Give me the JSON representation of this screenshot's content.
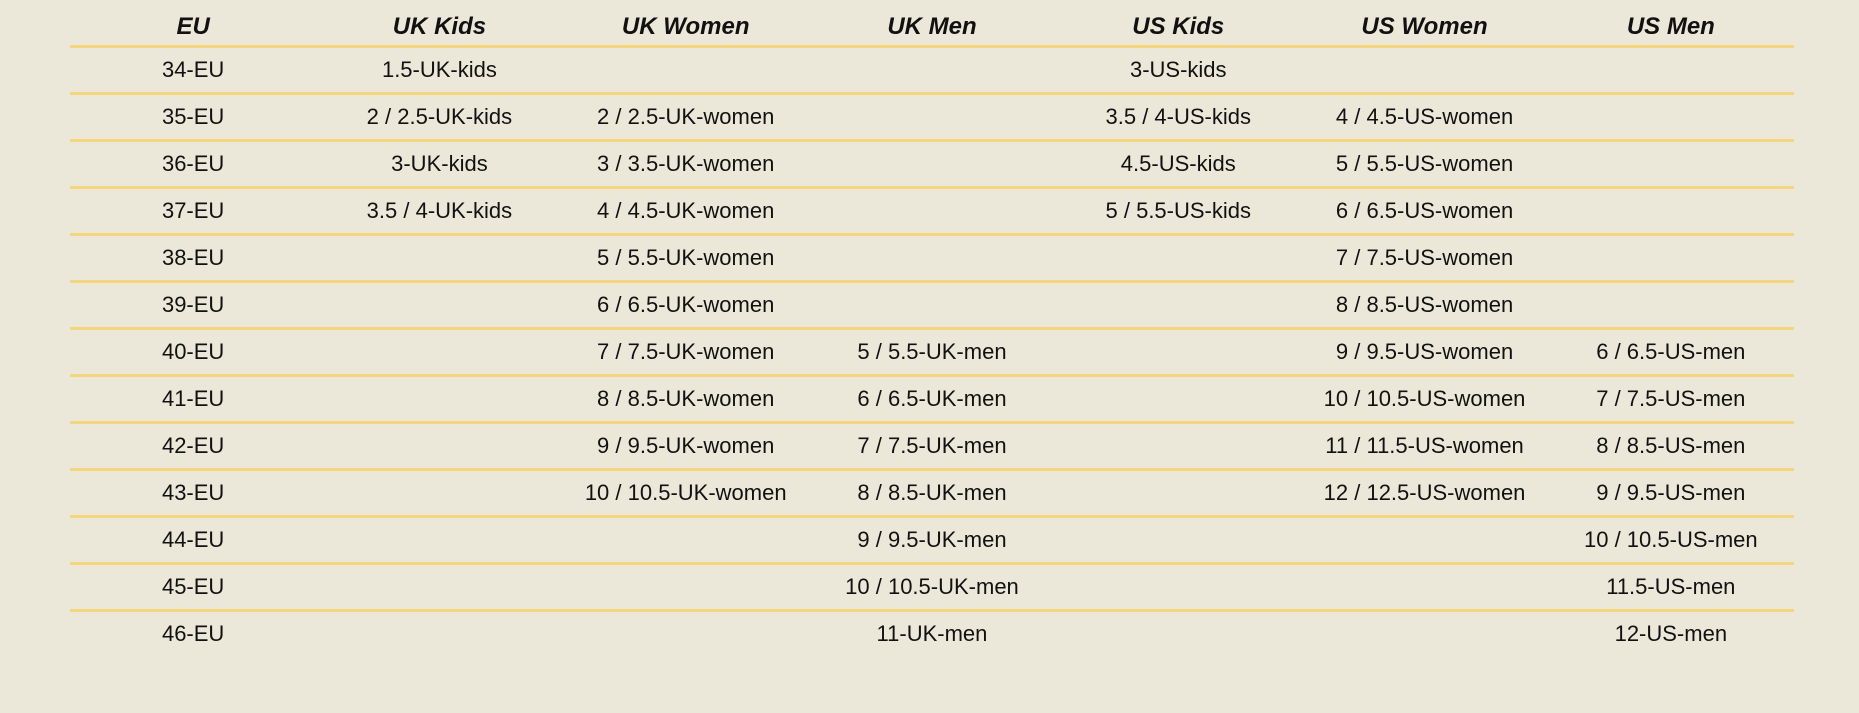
{
  "headers": [
    "EU",
    "UK Kids",
    "UK Women",
    "UK Men",
    "US Kids",
    "US Women",
    "US Men"
  ],
  "rows": [
    [
      "34-EU",
      "1.5-UK-kids",
      "",
      "",
      "3-US-kids",
      "",
      ""
    ],
    [
      "35-EU",
      "2 / 2.5-UK-kids",
      "2 / 2.5-UK-women",
      "",
      "3.5 / 4-US-kids",
      "4 / 4.5-US-women",
      ""
    ],
    [
      "36-EU",
      "3-UK-kids",
      "3 / 3.5-UK-women",
      "",
      "4.5-US-kids",
      "5 / 5.5-US-women",
      ""
    ],
    [
      "37-EU",
      "3.5 / 4-UK-kids",
      "4 / 4.5-UK-women",
      "",
      "5 / 5.5-US-kids",
      "6 / 6.5-US-women",
      ""
    ],
    [
      "38-EU",
      "",
      "5 / 5.5-UK-women",
      "",
      "",
      "7 / 7.5-US-women",
      ""
    ],
    [
      "39-EU",
      "",
      "6 / 6.5-UK-women",
      "",
      "",
      "8 / 8.5-US-women",
      ""
    ],
    [
      "40-EU",
      "",
      "7 / 7.5-UK-women",
      "5 / 5.5-UK-men",
      "",
      "9 / 9.5-US-women",
      "6 / 6.5-US-men"
    ],
    [
      "41-EU",
      "",
      "8 / 8.5-UK-women",
      "6 / 6.5-UK-men",
      "",
      "10 / 10.5-US-women",
      "7 / 7.5-US-men"
    ],
    [
      "42-EU",
      "",
      "9 / 9.5-UK-women",
      "7 / 7.5-UK-men",
      "",
      "11 / 11.5-US-women",
      "8 / 8.5-US-men"
    ],
    [
      "43-EU",
      "",
      "10 / 10.5-UK-women",
      "8 / 8.5-UK-men",
      "",
      "12 / 12.5-US-women",
      "9 / 9.5-US-men"
    ],
    [
      "44-EU",
      "",
      "",
      "9 / 9.5-UK-men",
      "",
      "",
      "10 / 10.5-US-men"
    ],
    [
      "45-EU",
      "",
      "",
      "10 / 10.5-UK-men",
      "",
      "",
      "11.5-US-men"
    ],
    [
      "46-EU",
      "",
      "",
      "11-UK-men",
      "",
      "",
      "12-US-men"
    ]
  ],
  "colors": {
    "background": "#ece8d9",
    "rule": "#f4d67c",
    "text": "#111111"
  }
}
